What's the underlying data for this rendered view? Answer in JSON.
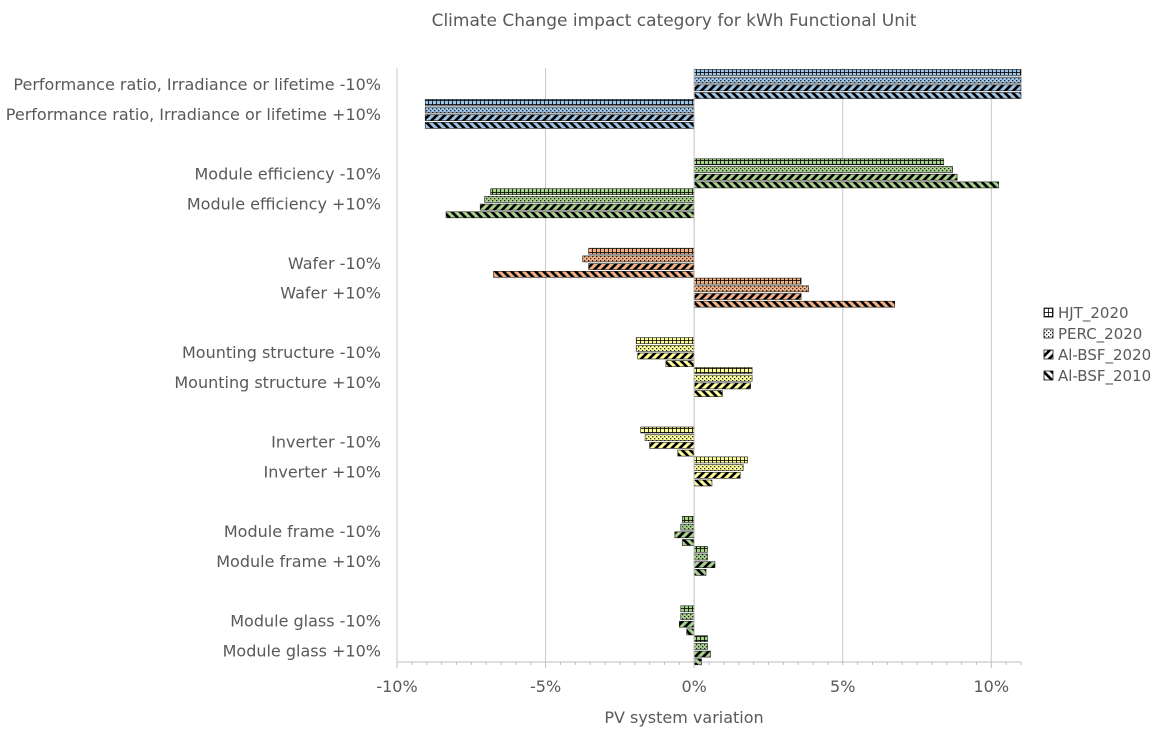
{
  "chart_data": {
    "type": "bar",
    "orientation": "horizontal",
    "title": "Climate Change impact category for kWh Functional Unit",
    "xlabel": "PV system variation",
    "ylabel": "",
    "xlim": [
      -0.1,
      0.11
    ],
    "x_ticks": [
      -0.1,
      -0.05,
      0,
      0.05,
      0.1
    ],
    "x_tick_labels": [
      "-10%",
      "-5%",
      "0%",
      "5%",
      "10%"
    ],
    "grid": true,
    "legend_position": "right",
    "categories": [
      "Performance ratio, Irradiance or lifetime -10%",
      "Performance ratio, Irradiance or lifetime +10%",
      "Module efficiency -10%",
      "Module efficiency +10%",
      "Wafer -10%",
      "Wafer +10%",
      "Mounting structure -10%",
      "Mounting structure +10%",
      "Inverter -10%",
      "Inverter +10%",
      "Module frame -10%",
      "Module frame +10%",
      "Module glass -10%",
      "Module glass +10%"
    ],
    "category_colors": [
      "#9dc3e6",
      "#9dc3e6",
      "#a9d18e",
      "#a9d18e",
      "#f4b183",
      "#f4b183",
      "#ffff99",
      "#ffff99",
      "#ffff99",
      "#ffff99",
      "#a9d18e",
      "#a9d18e",
      "#a9d18e",
      "#a9d18e"
    ],
    "series": [
      {
        "name": "HJT_2020",
        "pattern": "grid",
        "values": [
          0.111,
          -0.0905,
          0.084,
          -0.0685,
          -0.0355,
          0.036,
          -0.0195,
          0.0195,
          -0.018,
          0.018,
          -0.004,
          0.0045,
          -0.0045,
          0.0045
        ]
      },
      {
        "name": "PERC_2020",
        "pattern": "dots",
        "values": [
          0.111,
          -0.0905,
          0.087,
          -0.0705,
          -0.0375,
          0.0385,
          -0.0195,
          0.0195,
          -0.0165,
          0.0165,
          -0.0045,
          0.0045,
          -0.0045,
          0.0045
        ]
      },
      {
        "name": "Al-BSF_2020",
        "pattern": "wide-upward-diagonal",
        "values": [
          0.111,
          -0.0905,
          0.0885,
          -0.072,
          -0.0355,
          0.036,
          -0.019,
          0.019,
          -0.015,
          0.0155,
          -0.0065,
          0.007,
          -0.005,
          0.0055
        ]
      },
      {
        "name": "Al-BSF_2010",
        "pattern": "wide-downward-diagonal",
        "values": [
          0.111,
          -0.0905,
          0.1025,
          -0.0835,
          -0.0675,
          0.0675,
          -0.0095,
          0.0095,
          -0.0055,
          0.006,
          -0.004,
          0.004,
          -0.0025,
          0.0025
        ]
      }
    ]
  }
}
